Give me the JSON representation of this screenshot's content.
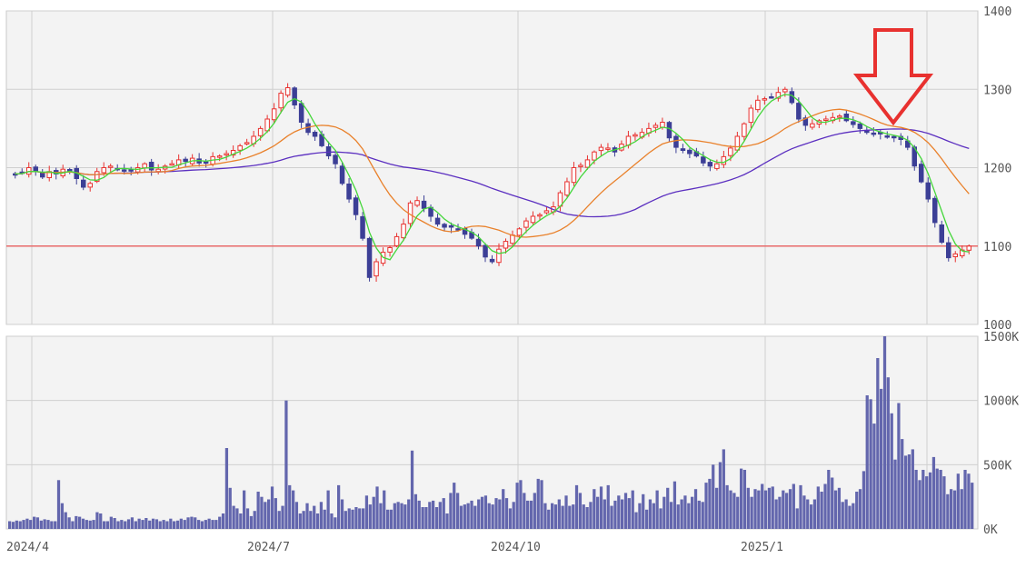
{
  "chart_data": [
    {
      "type": "candlestick",
      "panel": "price",
      "ylim": [
        1000,
        1400
      ],
      "yticks": [
        "1400",
        "1300",
        "1200",
        "1100",
        "1000"
      ],
      "grid": true,
      "reference_line": {
        "value": 1100,
        "color": "#e86a6a"
      },
      "colors": {
        "up": "#e8312f",
        "down": "#3c3f96",
        "ma_short": "#44d63a",
        "ma_mid": "#e9812b",
        "ma_long": "#5b2fc0"
      },
      "annotation": {
        "type": "down-arrow",
        "color": "#e8312f",
        "near": "2025/2"
      },
      "close_series": [
        1192,
        1193,
        1200,
        1196,
        1188,
        1195,
        1192,
        1198,
        1197,
        1186,
        1175,
        1180,
        1195,
        1200,
        1202,
        1198,
        1196,
        1197,
        1200,
        1205,
        1197,
        1198,
        1202,
        1205,
        1210,
        1208,
        1212,
        1206,
        1207,
        1214,
        1215,
        1218,
        1222,
        1228,
        1232,
        1240,
        1250,
        1262,
        1275,
        1295,
        1302,
        1280,
        1258,
        1245,
        1240,
        1228,
        1215,
        1205,
        1180,
        1160,
        1140,
        1110,
        1060,
        1080,
        1092,
        1098,
        1112,
        1128,
        1155,
        1158,
        1148,
        1138,
        1128,
        1124,
        1124,
        1122,
        1115,
        1110,
        1100,
        1086,
        1080,
        1096,
        1106,
        1114,
        1122,
        1132,
        1138,
        1140,
        1145,
        1150,
        1168,
        1182,
        1200,
        1203,
        1210,
        1220,
        1226,
        1225,
        1220,
        1230,
        1240,
        1242,
        1245,
        1250,
        1254,
        1258,
        1238,
        1226,
        1222,
        1218,
        1215,
        1206,
        1202,
        1205,
        1214,
        1225,
        1240,
        1256,
        1276,
        1286,
        1288,
        1290,
        1296,
        1300,
        1283,
        1262,
        1254,
        1256,
        1260,
        1262,
        1264,
        1266,
        1260,
        1255,
        1250,
        1245,
        1244,
        1243,
        1240,
        1238,
        1236,
        1226,
        1202,
        1182,
        1160,
        1130,
        1105,
        1085,
        1090,
        1095,
        1100
      ]
    },
    {
      "type": "bar",
      "panel": "volume",
      "ylim": [
        0,
        1500
      ],
      "unit": "K",
      "yticks": [
        "1500K",
        "1000K",
        "500K",
        "0K"
      ],
      "color": "#6366ad",
      "grid": true,
      "values": [
        60,
        55,
        65,
        60,
        70,
        80,
        70,
        95,
        90,
        65,
        75,
        70,
        60,
        60,
        380,
        200,
        130,
        90,
        60,
        100,
        95,
        80,
        70,
        65,
        70,
        130,
        120,
        60,
        60,
        95,
        85,
        60,
        70,
        60,
        75,
        90,
        60,
        80,
        70,
        85,
        65,
        80,
        75,
        60,
        70,
        60,
        80,
        60,
        65,
        80,
        70,
        90,
        95,
        90,
        70,
        60,
        70,
        80,
        70,
        70,
        95,
        120,
        630,
        320,
        180,
        160,
        120,
        300,
        160,
        100,
        140,
        290,
        250,
        210,
        230,
        330,
        240,
        140,
        180,
        1000,
        340,
        300,
        210,
        120,
        140,
        200,
        140,
        180,
        120,
        210,
        150,
        300,
        120,
        90,
        340,
        230,
        140,
        160,
        150,
        170,
        160,
        160,
        260,
        190,
        250,
        330,
        200,
        300,
        150,
        150,
        200,
        210,
        200,
        190,
        230,
        610,
        270,
        220,
        170,
        170,
        210,
        220,
        170,
        210,
        240,
        120,
        280,
        360,
        280,
        180,
        190,
        200,
        220,
        180,
        230,
        250,
        260,
        200,
        190,
        240,
        230,
        310,
        240,
        160,
        210,
        360,
        380,
        280,
        220,
        220,
        280,
        390,
        380,
        200,
        150,
        200,
        190,
        230,
        180,
        260,
        180,
        190,
        340,
        280,
        190,
        170,
        210,
        310,
        250,
        330,
        230,
        340,
        180,
        220,
        260,
        230,
        280,
        240,
        300,
        130,
        200,
        270,
        150,
        230,
        200,
        300,
        160,
        250,
        320,
        210,
        370,
        190,
        230,
        260,
        200,
        250,
        310,
        220,
        210,
        360,
        390,
        500,
        320,
        520,
        620,
        340,
        300,
        280,
        250,
        470,
        460,
        320,
        250,
        310,
        300,
        350,
        300,
        320,
        330,
        230,
        250,
        300,
        280,
        310,
        350,
        160,
        340,
        260,
        230,
        190,
        230,
        330,
        290,
        350,
        460,
        400,
        300,
        320,
        210,
        230,
        180,
        200,
        290,
        310,
        450,
        1040,
        1010,
        820,
        1330,
        1090,
        1500,
        1180,
        900,
        540,
        980,
        700,
        570,
        580,
        620,
        460,
        380,
        460,
        410,
        440,
        560,
        470,
        460,
        410,
        270,
        310,
        300,
        430,
        310,
        460,
        430,
        360
      ]
    }
  ],
  "x_axis": {
    "labels": [
      "2024/4",
      "2024/7",
      "2024/10",
      "2025/1"
    ]
  }
}
